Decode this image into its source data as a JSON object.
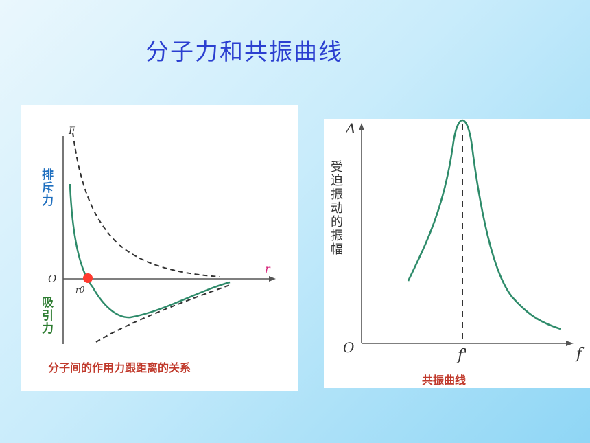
{
  "slide": {
    "title": "分子力和共振曲线"
  },
  "left_diagram": {
    "y_axis_label": "F",
    "x_axis_label": "r",
    "origin_label": "O",
    "r0_label": "r0",
    "repulsive_label": "排斥力",
    "attractive_label": "吸引力",
    "caption": "分子间的作用力跟距离的关系",
    "colors": {
      "curve": "#2e8b6a",
      "point": "#ff3b30",
      "repulsive_text": "#1f6fbf",
      "attractive_text": "#2e7d32",
      "caption": "#c0392b",
      "r_label": "#d6247a"
    }
  },
  "right_diagram": {
    "y_axis_label": "A",
    "x_axis_label": "f",
    "origin_label": "O",
    "peak_label": "f'",
    "y_title": "受迫振动的振幅",
    "caption": "共振曲线",
    "colors": {
      "curve": "#2e8b6a",
      "caption": "#c0392b"
    }
  }
}
